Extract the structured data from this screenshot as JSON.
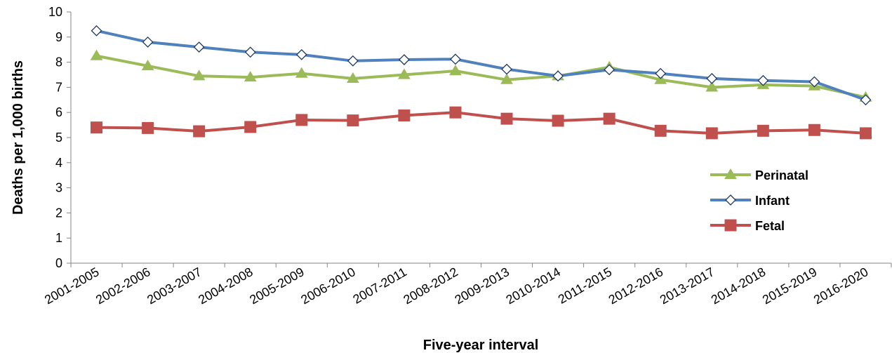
{
  "chart_data": {
    "type": "line",
    "xlabel": "Five-year interval",
    "ylabel": "Deaths per 1,000 births",
    "ylim": [
      0,
      10
    ],
    "yticks": [
      "0",
      "1",
      "2",
      "3",
      "4",
      "5",
      "6",
      "7",
      "8",
      "9",
      "10"
    ],
    "grid": false,
    "legend_position": "right",
    "categories": [
      "2001-2005",
      "2002-2006",
      "2003-2007",
      "2004-2008",
      "2005-2009",
      "2006-2010",
      "2007-2011",
      "2008-2012",
      "2009-2013",
      "2010-2014",
      "2011-2015",
      "2012-2016",
      "2013-2017",
      "2014-2018",
      "2015-2019",
      "2016-2020"
    ],
    "series": [
      {
        "name": "Perinatal",
        "color": "#9BBB59",
        "marker": "triangle",
        "values": [
          8.25,
          7.85,
          7.45,
          7.4,
          7.55,
          7.35,
          7.5,
          7.65,
          7.3,
          7.45,
          7.8,
          7.3,
          7.0,
          7.1,
          7.05,
          6.6
        ]
      },
      {
        "name": "Infant",
        "color": "#4F81BD",
        "marker": "diamond",
        "values": [
          9.25,
          8.8,
          8.6,
          8.4,
          8.3,
          8.05,
          8.1,
          8.12,
          7.72,
          7.45,
          7.7,
          7.55,
          7.35,
          7.27,
          7.22,
          6.5
        ]
      },
      {
        "name": "Fetal",
        "color": "#C0504D",
        "marker": "square",
        "values": [
          5.4,
          5.38,
          5.25,
          5.42,
          5.7,
          5.68,
          5.88,
          6.0,
          5.75,
          5.67,
          5.75,
          5.27,
          5.17,
          5.27,
          5.3,
          5.17
        ]
      }
    ]
  }
}
